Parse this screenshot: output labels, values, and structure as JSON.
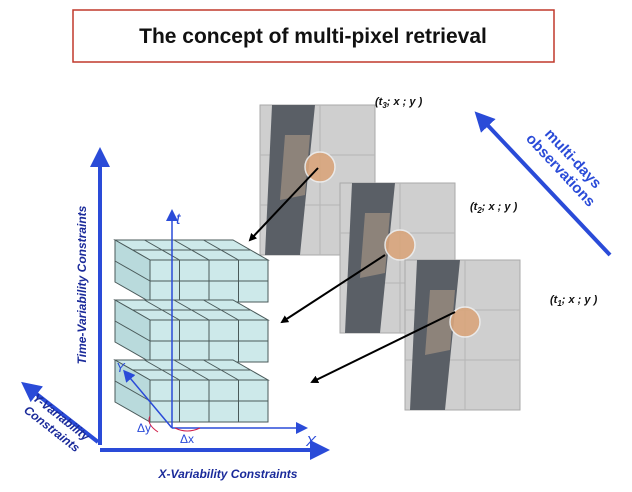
{
  "title": "The concept of multi-pixel retrieval",
  "observations": [
    {
      "prefix": "(t",
      "sub": "3",
      "suffix": "; x ; y )"
    },
    {
      "prefix": "(t",
      "sub": "2",
      "suffix": "; x ; y )"
    },
    {
      "prefix": "(t",
      "sub": "1",
      "suffix": "; x ; y )"
    }
  ],
  "multi_days": [
    "multi-days",
    "observations"
  ],
  "time_constraints": "Time-Variability Constraints",
  "x_constraints": "X-Variability Constraints",
  "y_constraints": [
    "Y-Variability",
    "Constraints"
  ],
  "axes": {
    "t": "t",
    "x": "X",
    "y": "Y",
    "dx": "Δx",
    "dy": "Δy"
  }
}
